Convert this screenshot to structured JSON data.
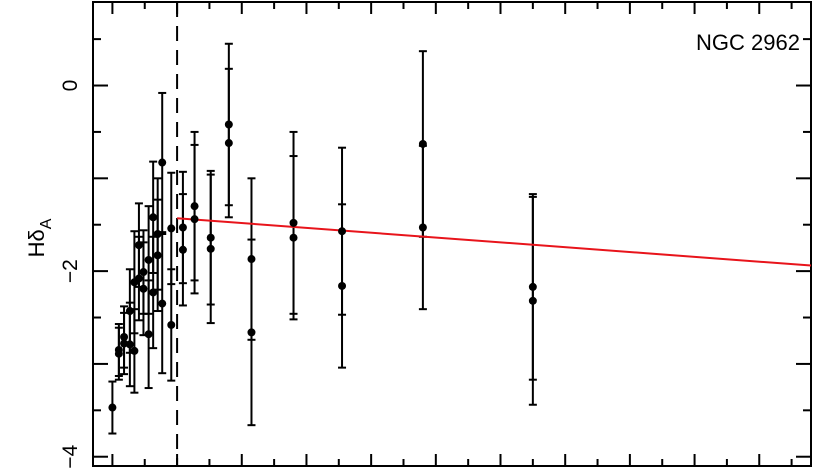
{
  "chart_data": {
    "type": "scatter",
    "annotation": "NGC 2962",
    "ylabel": "Hδ",
    "ylabel_subscript": "A",
    "xlabel": "",
    "ylim": [
      -4.1,
      0.9
    ],
    "xlim": [
      -1.3,
      9.8
    ],
    "y_ticks": [
      -4,
      -2,
      0
    ],
    "y_tick_labels": [
      "−4",
      "−2",
      "0"
    ],
    "x_tick_labels": [],
    "grid": false,
    "legend": "none",
    "vertical_line": {
      "x": 0,
      "style": "dashed",
      "color": "#000000"
    },
    "fit_line": {
      "x": [
        0,
        9.8
      ],
      "y": [
        -1.43,
        -1.94
      ],
      "color": "#e8141b"
    },
    "series": [
      {
        "marker_color": "#000000",
        "points": [
          {
            "x": -1.0,
            "y": -3.47,
            "err": 0.28
          },
          {
            "x": -0.9,
            "y": -2.85,
            "err": 0.28
          },
          {
            "x": -0.9,
            "y": -2.89,
            "err": 0.28
          },
          {
            "x": -0.82,
            "y": -2.71,
            "err": 0.33
          },
          {
            "x": -0.82,
            "y": -2.78,
            "err": 0.33
          },
          {
            "x": -0.73,
            "y": -2.43,
            "err": 0.45
          },
          {
            "x": -0.73,
            "y": -2.79,
            "err": 0.45
          },
          {
            "x": -0.66,
            "y": -2.12,
            "err": 0.55
          },
          {
            "x": -0.66,
            "y": -2.86,
            "err": 0.45
          },
          {
            "x": -0.59,
            "y": -1.72,
            "err": 0.45
          },
          {
            "x": -0.59,
            "y": -2.08,
            "err": 0.45
          },
          {
            "x": -0.52,
            "y": -2.01,
            "err": 0.45
          },
          {
            "x": -0.52,
            "y": -2.19,
            "err": 0.5
          },
          {
            "x": -0.44,
            "y": -1.88,
            "err": 0.58
          },
          {
            "x": -0.44,
            "y": -2.68,
            "err": 0.58
          },
          {
            "x": -0.37,
            "y": -1.42,
            "err": 0.6
          },
          {
            "x": -0.37,
            "y": -2.23,
            "err": 0.6
          },
          {
            "x": -0.3,
            "y": -1.6,
            "err": 0.6
          },
          {
            "x": -0.3,
            "y": -1.83,
            "err": 0.6
          },
          {
            "x": -0.23,
            "y": -0.83,
            "err": 0.75
          },
          {
            "x": -0.23,
            "y": -2.35,
            "err": 0.75
          },
          {
            "x": -0.09,
            "y": -1.54,
            "err": 0.6
          },
          {
            "x": -0.09,
            "y": -2.58,
            "err": 0.6
          },
          {
            "x": 0.09,
            "y": -1.53,
            "err": 0.6
          },
          {
            "x": 0.09,
            "y": -1.77,
            "err": 0.6
          },
          {
            "x": 0.27,
            "y": -1.3,
            "err": 0.8
          },
          {
            "x": 0.27,
            "y": -1.44,
            "err": 0.8
          },
          {
            "x": 0.52,
            "y": -1.64,
            "err": 0.72
          },
          {
            "x": 0.52,
            "y": -1.76,
            "err": 0.8
          },
          {
            "x": 0.8,
            "y": -0.42,
            "err": 0.87
          },
          {
            "x": 0.8,
            "y": -0.62,
            "err": 0.8
          },
          {
            "x": 1.15,
            "y": -1.87,
            "err": 0.87
          },
          {
            "x": 1.15,
            "y": -2.66,
            "err": 1.0
          },
          {
            "x": 1.8,
            "y": -1.48,
            "err": 0.98
          },
          {
            "x": 1.8,
            "y": -1.64,
            "err": 0.88
          },
          {
            "x": 2.55,
            "y": -1.57,
            "err": 0.9
          },
          {
            "x": 2.55,
            "y": -2.16,
            "err": 0.88
          },
          {
            "x": 3.8,
            "y": -0.63,
            "err": 1.0
          },
          {
            "x": 3.8,
            "y": -1.53,
            "err": 0.88
          },
          {
            "x": 5.5,
            "y": -2.17,
            "err": 1.0
          },
          {
            "x": 5.5,
            "y": -2.32,
            "err": 1.12
          }
        ]
      }
    ]
  }
}
